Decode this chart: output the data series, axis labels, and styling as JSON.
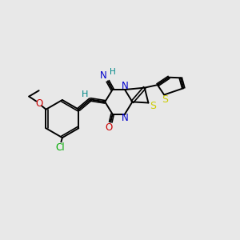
{
  "background_color": "#e8e8e8",
  "bond_color": "#000000",
  "n_color": "#0000cc",
  "s_color": "#cccc00",
  "o_color": "#cc0000",
  "cl_color": "#00aa00",
  "h_color": "#008888",
  "figsize": [
    3.0,
    3.0
  ],
  "dpi": 100,
  "xlim": [
    0,
    10
  ],
  "ylim": [
    0,
    10
  ]
}
